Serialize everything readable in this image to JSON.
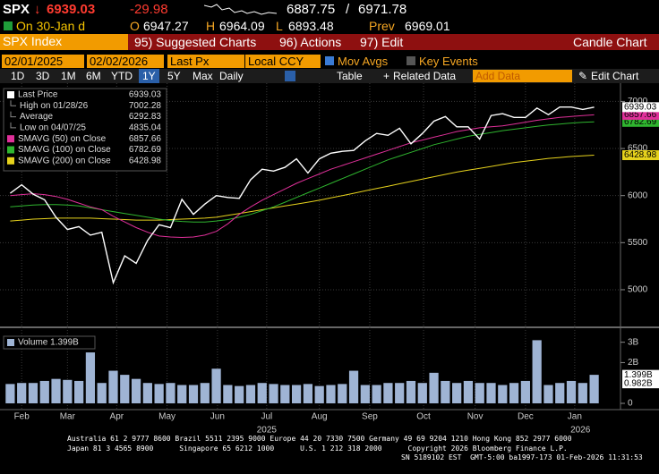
{
  "header": {
    "symbol": "SPX",
    "arrow": "↓",
    "last": 6939.03,
    "change": -29.98,
    "range_low": 6887.75,
    "range_sep": "/",
    "range_high": 6971.78,
    "session": "On 30-Jan d",
    "open_label": "O",
    "open": 6947.27,
    "high_label": "H",
    "high": 6964.09,
    "low_label": "L",
    "low": 6893.48,
    "prev_label": "Prev",
    "prev": 6969.01
  },
  "menu": {
    "security": "SPX Index",
    "items": [
      "95) Suggested Charts",
      "96) Actions",
      "97) Edit"
    ],
    "chart_kind": "Candle Chart"
  },
  "controls": {
    "start": "02/01/2025",
    "end": "02/02/2026",
    "field": "Last Px",
    "currency": "Local CCY",
    "mov_avgs": "Mov Avgs",
    "key_events": "Key Events",
    "periods": [
      "1D",
      "3D",
      "1M",
      "6M",
      "YTD",
      "1Y",
      "5Y",
      "Max"
    ],
    "selected_period": 5,
    "frequency": "Daily",
    "table": "Table",
    "related": "Related Data",
    "add_data": "Add Data",
    "edit_chart": "Edit Chart"
  },
  "chart_data": [
    {
      "type": "line",
      "xlim": [
        0,
        52
      ],
      "ylim": [
        4610,
        7175
      ],
      "yticks": [
        5000,
        5500,
        6000,
        6500,
        7000
      ],
      "grid": true,
      "xticks": [
        {
          "value": 1.5,
          "label": "Feb"
        },
        {
          "value": 5.5,
          "label": "Mar"
        },
        {
          "value": 9.8,
          "label": "Apr"
        },
        {
          "value": 14.2,
          "label": "May"
        },
        {
          "value": 18.6,
          "label": "Jun"
        },
        {
          "value": 22.9,
          "label": "Jul"
        },
        {
          "value": 27.5,
          "label": "Aug"
        },
        {
          "value": 31.9,
          "label": "Sep"
        },
        {
          "value": 36.6,
          "label": "Oct"
        },
        {
          "value": 41.1,
          "label": "Nov"
        },
        {
          "value": 45.5,
          "label": "Dec"
        },
        {
          "value": 49.8,
          "label": "Jan"
        }
      ],
      "year_ticks": [
        {
          "value": 22.9,
          "label": "2025"
        },
        {
          "value": 50.3,
          "label": "2026"
        }
      ],
      "series": [
        {
          "name": "Last Price",
          "color": "#ffffff",
          "last": 6939.03,
          "values": [
            6025,
            6115,
            6015,
            5955,
            5770,
            5640,
            5670,
            5580,
            5610,
            5075,
            5360,
            5280,
            5525,
            5690,
            5660,
            5960,
            5800,
            5910,
            6000,
            5980,
            5970,
            6170,
            6280,
            6260,
            6300,
            6390,
            6240,
            6390,
            6450,
            6470,
            6480,
            6580,
            6660,
            6640,
            6715,
            6550,
            6660,
            6790,
            6840,
            6730,
            6730,
            6600,
            6850,
            6870,
            6830,
            6830,
            6930,
            6860,
            6940,
            6940,
            6915,
            6939.03
          ]
        },
        {
          "name": "SMAVG (50)  on Close",
          "color": "#e0309a",
          "last": 6857.66,
          "values": [
            6000,
            6010,
            6020,
            6010,
            5990,
            5960,
            5920,
            5880,
            5850,
            5780,
            5720,
            5660,
            5610,
            5570,
            5560,
            5555,
            5560,
            5580,
            5620,
            5700,
            5800,
            5880,
            5950,
            6010,
            6070,
            6130,
            6180,
            6230,
            6280,
            6320,
            6360,
            6400,
            6440,
            6480,
            6520,
            6560,
            6590,
            6620,
            6650,
            6680,
            6700,
            6720,
            6730,
            6740,
            6760,
            6780,
            6800,
            6815,
            6830,
            6840,
            6850,
            6857.66
          ]
        },
        {
          "name": "SMAVG (100)  on Close",
          "color": "#2fb52f",
          "last": 6782.69,
          "values": [
            5880,
            5890,
            5900,
            5905,
            5905,
            5900,
            5890,
            5870,
            5850,
            5830,
            5810,
            5790,
            5770,
            5750,
            5735,
            5725,
            5720,
            5720,
            5730,
            5745,
            5770,
            5800,
            5840,
            5880,
            5930,
            5980,
            6030,
            6080,
            6130,
            6180,
            6230,
            6280,
            6330,
            6380,
            6420,
            6460,
            6500,
            6540,
            6570,
            6600,
            6630,
            6650,
            6670,
            6690,
            6705,
            6720,
            6735,
            6750,
            6760,
            6770,
            6778,
            6782.69
          ]
        },
        {
          "name": "SMAVG (200)  on Close",
          "color": "#e6d21c",
          "last": 6428.98,
          "values": [
            5730,
            5740,
            5750,
            5755,
            5760,
            5760,
            5760,
            5760,
            5755,
            5750,
            5745,
            5740,
            5740,
            5740,
            5745,
            5750,
            5755,
            5760,
            5770,
            5790,
            5810,
            5830,
            5850,
            5870,
            5890,
            5910,
            5930,
            5950,
            5975,
            6000,
            6025,
            6050,
            6075,
            6100,
            6125,
            6150,
            6175,
            6200,
            6225,
            6250,
            6270,
            6290,
            6310,
            6330,
            6350,
            6365,
            6380,
            6395,
            6405,
            6415,
            6422,
            6428.98
          ]
        }
      ],
      "stats": [
        {
          "label": "High on 01/28/26",
          "value": 7002.28
        },
        {
          "label": "Average",
          "value": 6292.83
        },
        {
          "label": "Low on 04/07/25",
          "value": 4835.04
        }
      ]
    },
    {
      "type": "bar",
      "legend_label": "Volume 1.399B",
      "color": "#9fb4d4",
      "xlim": [
        0,
        52
      ],
      "ylim": [
        0,
        3.6
      ],
      "yticks": [
        0,
        {
          "value": 2,
          "label": "2B"
        },
        {
          "value": 3,
          "label": "3B"
        }
      ],
      "tags": [
        {
          "value": 1.399,
          "label": "1.399B"
        },
        {
          "value": 0.982,
          "label": "0.982B"
        }
      ],
      "values": [
        0.95,
        1.0,
        1.0,
        1.1,
        1.2,
        1.15,
        1.1,
        2.5,
        1.0,
        1.6,
        1.4,
        1.2,
        1.0,
        0.95,
        1.0,
        0.9,
        0.9,
        1.0,
        1.7,
        0.9,
        0.85,
        0.9,
        1.0,
        0.95,
        0.9,
        0.9,
        0.95,
        0.85,
        0.9,
        0.95,
        1.6,
        0.9,
        0.9,
        1.0,
        1.0,
        1.1,
        1.0,
        1.5,
        1.1,
        1.0,
        1.1,
        1.0,
        1.0,
        0.9,
        1.0,
        1.1,
        3.1,
        0.9,
        1.0,
        1.1,
        1.0,
        1.4
      ]
    }
  ],
  "footer": {
    "line1": "Australia 61 2 9777 8600 Brazil 5511 2395 9000 Europe 44 20 7330 7500 Germany 49 69 9204 1210 Hong Kong 852 2977 6000",
    "line2": "Japan 81 3 4565 8900      Singapore 65 6212 1000      U.S. 1 212 318 2000      Copyright 2026 Bloomberg Finance L.P.",
    "line3": "SN 5189102 EST  GMT-5:00 ba1997-173 01-Feb-2026 11:31:53"
  }
}
